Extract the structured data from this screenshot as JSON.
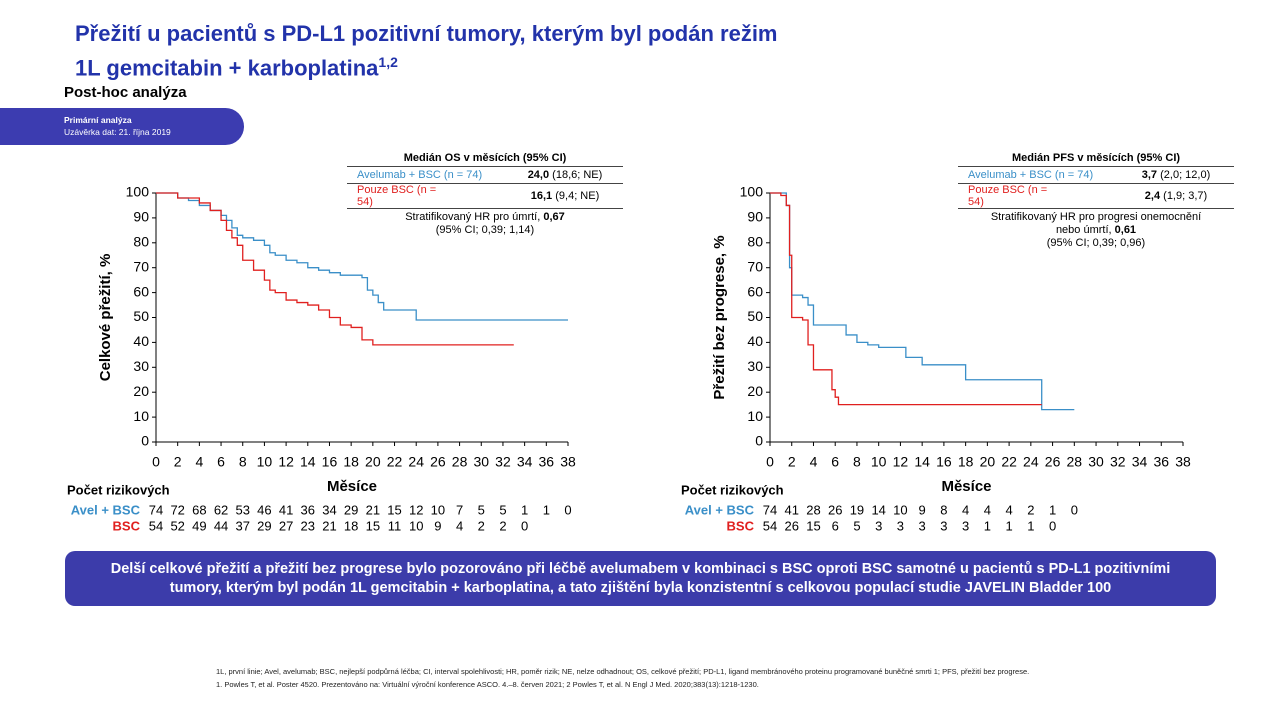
{
  "title_line1": "Přežití u pacientů s PD-L1 pozitivní tumory, kterým byl podán režim",
  "title_line2": "1L gemcitabin + karboplatina",
  "title_sup": "1,2",
  "subtitle": "Post-hoc analýza",
  "badge": [
    "Primární analýza",
    "Uzávěrka dat: 21. října 2019"
  ],
  "conclusion": "Delší celkové přežití a přežití bez progrese bylo pozorováno při léčbě avelumabem v kombinaci s BSC oproti BSC samotné u pacientů s PD-L1 pozitivními tumory, kterým byl podán 1L gemcitabin + karboplatina, a tato zjištění byla konzistentní s celkovou populací studie JAVELIN Bladder 100",
  "footnotes": [
    "1L, první linie; Avel, avelumab; BSC, nejlepší podpůrná léčba; CI, interval spolehlivosti; HR, poměr rizik; NE, nelze odhadnout; OS, celkové přežití; PD-L1, ligand membránového proteinu programované buněčné smrti 1; PFS, přežití bez progrese.",
    "1. Powles T, et al. Poster 4520. Prezentováno na: Virtuální výroční konference ASCO. 4.–8. červen 2021; 2 Powles T, et al. N Engl J Med. 2020;383(13):1218-1230."
  ],
  "chart_data": [
    {
      "type": "step",
      "ylabel": "Celkové přežití, %",
      "xlabel": "Měsíce",
      "xlim": [
        0,
        38
      ],
      "xticks": [
        0,
        2,
        4,
        6,
        8,
        10,
        12,
        14,
        16,
        18,
        20,
        22,
        24,
        26,
        28,
        30,
        32,
        34,
        36,
        38
      ],
      "ylim": [
        0,
        100
      ],
      "yticks": [
        0,
        10,
        20,
        30,
        40,
        50,
        60,
        70,
        80,
        90,
        100
      ],
      "table_header": "Medián OS v měsících (95% CI)",
      "hr_text": "Stratifikovaný HR pro úmrtí,",
      "hr_value": "0,67",
      "hr_ci": "(95% CI; 0,39; 1,14)",
      "at_risk_title": "Počet rizikových",
      "series": [
        {
          "name": "Avelumab + BSC (n = 74)",
          "color": "#3a8fc8",
          "median": "24,0",
          "median_ci": "(18,6; NE)",
          "at_risk_label": "Avel + BSC",
          "x": [
            0,
            2,
            3,
            4,
            5,
            6,
            6.5,
            7,
            7.5,
            8,
            9,
            10,
            10.5,
            11,
            12,
            13,
            14,
            15,
            16,
            17,
            19,
            19.5,
            20,
            20.5,
            21,
            24,
            38
          ],
          "values": [
            100,
            98,
            97,
            95,
            93,
            91,
            89,
            86,
            83,
            82,
            81,
            79,
            76,
            75,
            73,
            72,
            70,
            69,
            68,
            67,
            66,
            61,
            59,
            56,
            53,
            49,
            49
          ],
          "at_risk": [
            "74",
            "72",
            "68",
            "62",
            "53",
            "46",
            "41",
            "36",
            "34",
            "29",
            "21",
            "15",
            "12",
            "10",
            "7",
            "5",
            "5",
            "1",
            "1",
            "0"
          ]
        },
        {
          "name": "Pouze BSC (n = 54)",
          "color": "#e0201f",
          "median": "16,1",
          "median_ci": "(9,4; NE)",
          "at_risk_label": "BSC",
          "x": [
            0,
            1,
            2,
            4,
            5,
            6,
            6.5,
            7,
            7.5,
            8,
            9,
            10,
            10.5,
            11,
            12,
            13,
            14,
            15,
            16,
            17,
            18,
            19,
            20,
            33
          ],
          "values": [
            100,
            100,
            98,
            96,
            93,
            89,
            85,
            82,
            79,
            73,
            69,
            65,
            61,
            60,
            57,
            56,
            55,
            53,
            50,
            47,
            46,
            41,
            39,
            39
          ],
          "at_risk": [
            "54",
            "52",
            "49",
            "44",
            "37",
            "29",
            "27",
            "23",
            "21",
            "18",
            "15",
            "11",
            "10",
            "9",
            "4",
            "2",
            "2",
            "0"
          ]
        }
      ]
    },
    {
      "type": "step",
      "ylabel": "Přežití bez progrese, %",
      "xlabel": "Měsíce",
      "xlim": [
        0,
        38
      ],
      "xticks": [
        0,
        2,
        4,
        6,
        8,
        10,
        12,
        14,
        16,
        18,
        20,
        22,
        24,
        26,
        28,
        30,
        32,
        34,
        36,
        38
      ],
      "ylim": [
        0,
        100
      ],
      "yticks": [
        0,
        10,
        20,
        30,
        40,
        50,
        60,
        70,
        80,
        90,
        100
      ],
      "table_header": "Medián PFS v měsících (95% CI)",
      "hr_text": "Stratifikovaný HR pro progresi onemocnění nebo úmrtí,",
      "hr_value": "0,61",
      "hr_ci": "(95% CI; 0,39; 0,96)",
      "at_risk_title": "Počet rizikových",
      "series": [
        {
          "name": "Avelumab + BSC (n = 74)",
          "color": "#3a8fc8",
          "median": "3,7",
          "median_ci": "(2,0; 12,0)",
          "at_risk_label": "Avel + BSC",
          "x": [
            0,
            1,
            1.5,
            1.8,
            2,
            3,
            3.5,
            4,
            6,
            7,
            8,
            9,
            10,
            12,
            12.5,
            14,
            18,
            25,
            25,
            28
          ],
          "values": [
            100,
            100,
            95,
            70,
            59,
            58,
            55,
            47,
            47,
            43,
            40,
            39,
            38,
            38,
            34,
            31,
            25,
            25,
            13,
            13
          ],
          "at_risk": [
            "74",
            "41",
            "28",
            "26",
            "19",
            "14",
            "10",
            "9",
            "8",
            "4",
            "4",
            "4",
            "2",
            "1",
            "0"
          ]
        },
        {
          "name": "Pouze BSC (n = 54)",
          "color": "#e0201f",
          "median": "2,4",
          "median_ci": "(1,9; 3,7)",
          "at_risk_label": "BSC",
          "x": [
            0,
            1,
            1.5,
            1.8,
            2,
            3,
            3.5,
            4,
            5.5,
            5.7,
            6,
            6.3,
            25
          ],
          "values": [
            100,
            99,
            95,
            75,
            50,
            49,
            39,
            29,
            29,
            21,
            18,
            15,
            15
          ],
          "at_risk": [
            "54",
            "26",
            "15",
            "6",
            "5",
            "3",
            "3",
            "3",
            "3",
            "3",
            "1",
            "1",
            "1",
            "0"
          ]
        }
      ]
    }
  ]
}
